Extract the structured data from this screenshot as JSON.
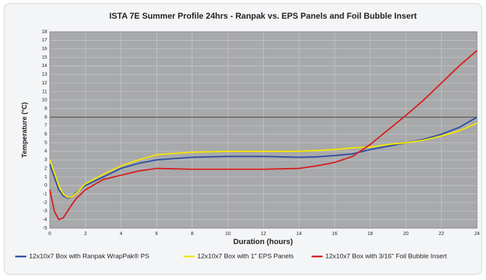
{
  "chart_data": {
    "type": "line",
    "title": "ISTA 7E Summer Profile 24hrs - Ranpak vs. EPS Panels and Foil Bubble Insert",
    "x_label": "Duration (hours)",
    "y_label": "Temperature (°C)",
    "x": [
      0,
      0.25,
      0.5,
      0.75,
      1,
      1.25,
      1.5,
      2,
      3,
      4,
      5,
      6,
      8,
      10,
      12,
      14,
      15,
      16,
      17,
      18,
      19,
      20,
      21,
      22,
      23,
      24
    ],
    "series": [
      {
        "name": "12x10x7 Box with Ranpak WrapPak® PS",
        "color": "#2e4fa0",
        "values": [
          2.5,
          1,
          -0.5,
          -1.2,
          -1.5,
          -1.3,
          -0.8,
          0,
          1,
          2,
          2.6,
          3,
          3.3,
          3.4,
          3.4,
          3.3,
          3.35,
          3.5,
          3.7,
          4.2,
          4.6,
          5,
          5.4,
          6,
          6.8,
          8
        ]
      },
      {
        "name": "12x10x7 Box with 1\" EPS Panels",
        "color": "#f2e600",
        "values": [
          3,
          1.5,
          0,
          -1,
          -1.4,
          -1.3,
          -0.9,
          0.2,
          1.3,
          2.3,
          3,
          3.6,
          3.9,
          4,
          4,
          4,
          4.1,
          4.2,
          4.4,
          4.5,
          4.8,
          5,
          5.3,
          5.8,
          6.4,
          7.3
        ]
      },
      {
        "name": "12x10x7 Box with 3/16\" Foil Bubble Insert",
        "color": "#d62020",
        "values": [
          -0.5,
          -3,
          -4,
          -3.8,
          -3,
          -2.2,
          -1.5,
          -0.5,
          0.7,
          1.2,
          1.7,
          2,
          1.9,
          1.9,
          1.9,
          2,
          2.3,
          2.7,
          3.4,
          4.8,
          6.5,
          8.2,
          10,
          12,
          14,
          15.8
        ]
      }
    ],
    "xlim": [
      0,
      24
    ],
    "xticks": [
      0,
      2,
      4,
      6,
      8,
      10,
      12,
      14,
      16,
      18,
      20,
      22,
      24
    ],
    "ylim": [
      -5,
      18
    ],
    "yticks": [
      -5,
      -4,
      -3,
      -2,
      -1,
      0,
      1,
      2,
      3,
      4,
      5,
      6,
      7,
      8,
      9,
      10,
      11,
      12,
      13,
      14,
      15,
      16,
      17,
      18
    ],
    "reference_line": 8,
    "grid": true,
    "legend": "bottom"
  }
}
